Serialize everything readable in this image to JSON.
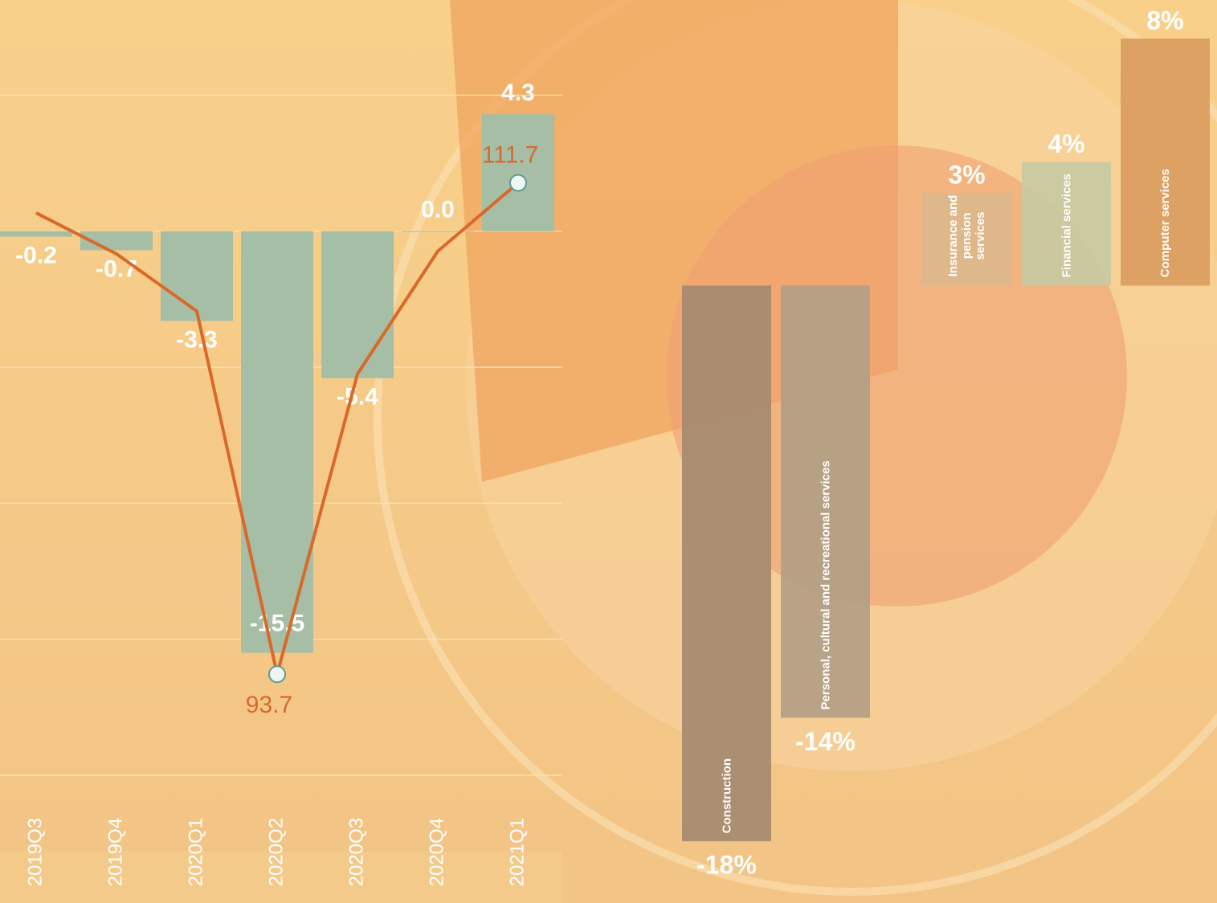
{
  "chart_data": [
    {
      "type": "bar-line",
      "categories": [
        "2019Q3",
        "2019Q4",
        "2020Q1",
        "2020Q2",
        "2020Q3",
        "2020Q4",
        "2021Q1"
      ],
      "series": [
        {
          "type": "bar",
          "color": "#a6bea5",
          "values": [
            -0.2,
            -0.7,
            -3.3,
            -15.5,
            -5.4,
            0.0,
            4.3
          ],
          "value_labels": [
            "-0.2",
            "-0.7",
            "-3.3",
            "-15.5",
            "-5.4",
            "0.0",
            "4.3"
          ]
        },
        {
          "type": "line",
          "axis": "y2",
          "color": "#d9692a",
          "values": [
            110.6,
            109.1,
            107.0,
            93.7,
            104.7,
            109.2,
            111.7
          ],
          "value_labels": [
            null,
            null,
            null,
            "93.7",
            null,
            null,
            "111.7"
          ]
        }
      ],
      "ylim": [
        -20,
        8.5
      ],
      "yticks": [
        5,
        0,
        -5,
        -10,
        -15,
        -20
      ],
      "grid": true,
      "y2lim": [
        90,
        118.4
      ]
    },
    {
      "type": "bar",
      "categories": [
        "Construction",
        "Personal, cultural and recreational services",
        "Insurance and pension services",
        "Financial services",
        "Computer services"
      ],
      "values": [
        -18,
        -14,
        3,
        4,
        8
      ],
      "value_labels": [
        "-18%",
        "-14%",
        "3%",
        "4%",
        "8%"
      ],
      "colors": [
        "#a58a70",
        "#b2a084",
        "#dcb98c",
        "#c8c9a2",
        "#d99c5e"
      ],
      "ylim": [
        -20,
        9.25
      ]
    }
  ]
}
